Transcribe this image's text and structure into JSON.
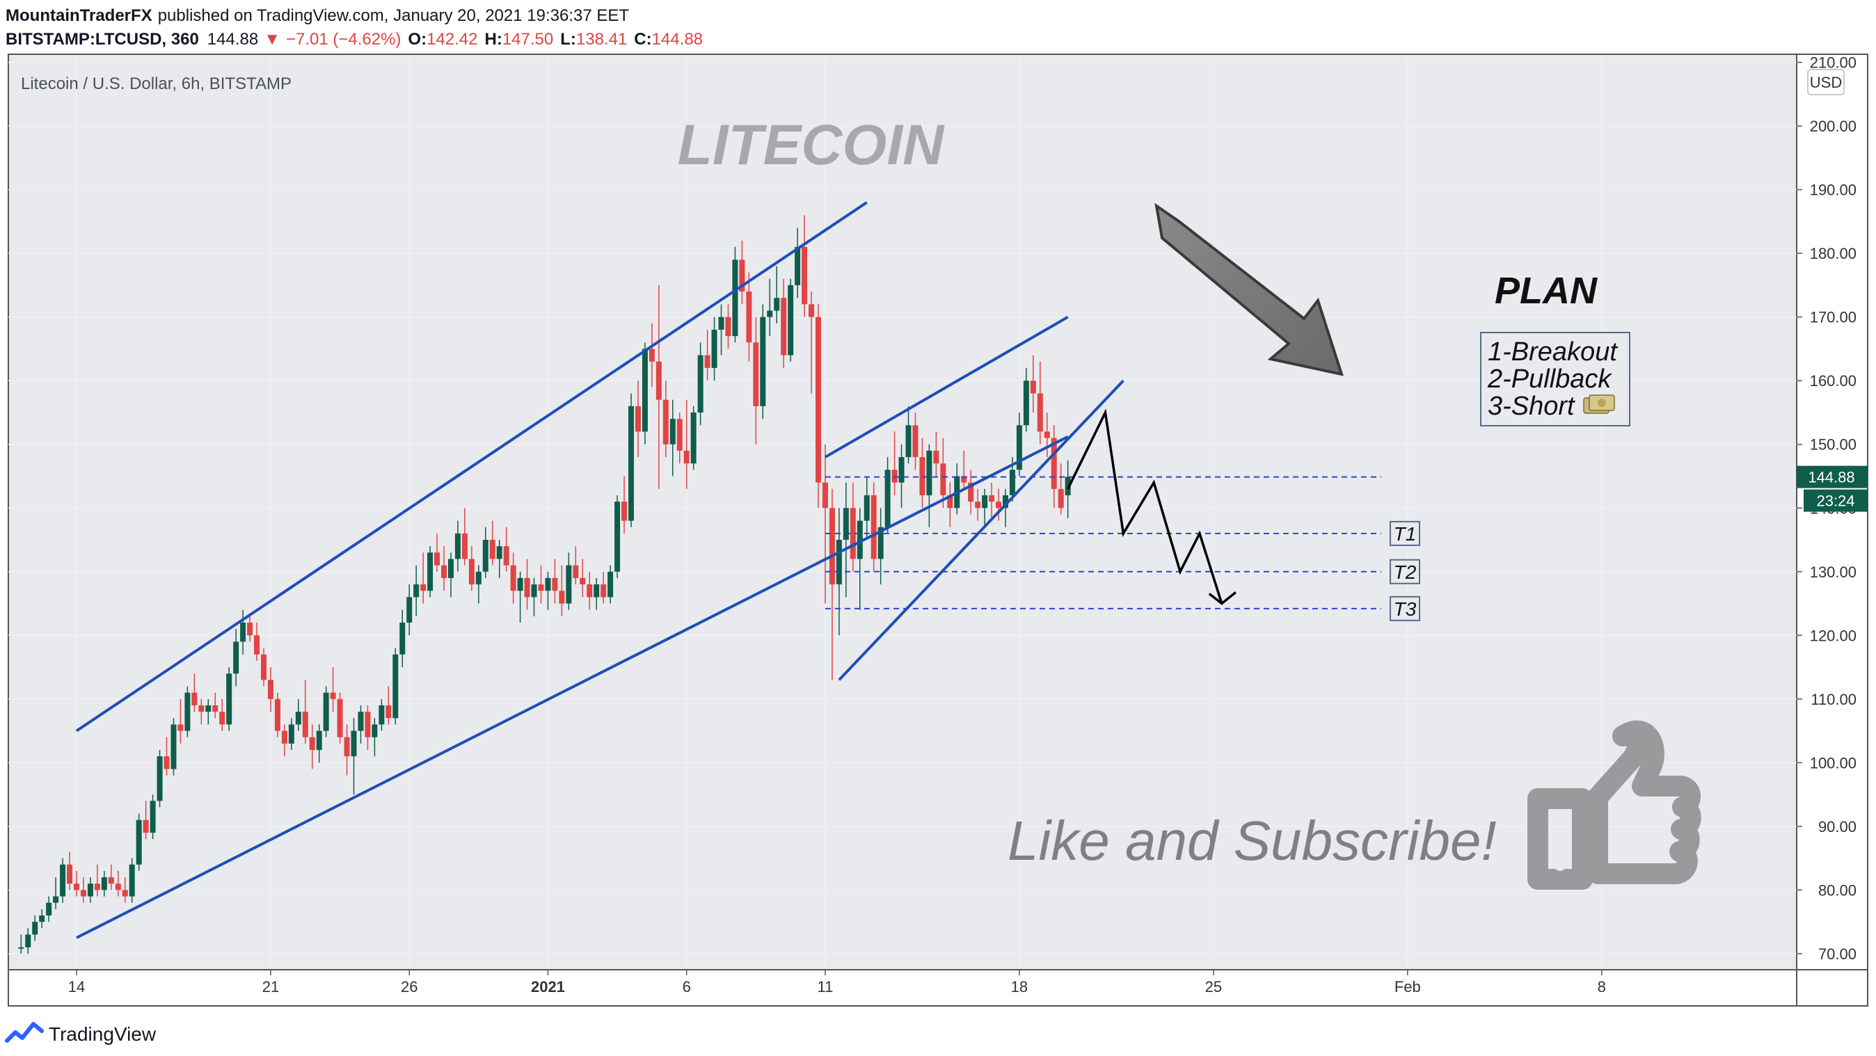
{
  "header": {
    "author": "MountainTraderFX",
    "published": "published on TradingView.com, January 20, 2021 19:36:37 EET",
    "symbol": "BITSTAMP:LTCUSD, 360",
    "price": "144.88",
    "change_arrow": "▼",
    "change": "−7.01 (−4.62%)",
    "o_label": "O:",
    "o": "142.42",
    "h_label": "H:",
    "h": "147.50",
    "l_label": "L:",
    "l": "138.41",
    "c_label": "C:",
    "c": "144.88"
  },
  "chart_title": "Litecoin / U.S. Dollar, 6h, BITSTAMP",
  "watermark": "LITECOIN",
  "currency": "USD",
  "price_tag": "144.88",
  "time_tag": "23:24",
  "plan": {
    "title": "PLAN",
    "items": [
      "1-Breakout",
      "2-Pullback",
      "3-Short"
    ],
    "short_icon": "money-icon"
  },
  "targets": [
    {
      "label": "T1",
      "price": 136
    },
    {
      "label": "T2",
      "price": 130
    },
    {
      "label": "T3",
      "price": 124.2
    }
  ],
  "cta": "Like and Subscribe!",
  "thumbs_icon": "thumbs-up-icon",
  "footer_brand": "TradingView",
  "colors": {
    "up": "#0e5e4b",
    "down": "#e04444",
    "channel": "#1e4fb5",
    "target_line": "#2f3fd6",
    "grid": "#f0f1f4",
    "plot_bg": "#e9eaee",
    "tag": "#0e5e4b"
  },
  "chart_data": {
    "type": "candlestick",
    "y_ticks": [
      "210.00",
      "200.00",
      "190.00",
      "180.00",
      "170.00",
      "160.00",
      "150.00",
      "140.00",
      "130.00",
      "120.00",
      "110.00",
      "100.00",
      "90.00",
      "80.00",
      "70.00"
    ],
    "ylim": [
      67,
      212
    ],
    "x_ticks": [
      {
        "label": "14",
        "day": 14
      },
      {
        "label": "21",
        "day": 21
      },
      {
        "label": "26",
        "day": 26
      },
      {
        "label": "2021",
        "day": 31
      },
      {
        "label": "6",
        "day": 36
      },
      {
        "label": "11",
        "day": 41
      },
      {
        "label": "18",
        "day": 48
      },
      {
        "label": "25",
        "day": 55
      },
      {
        "label": "Feb",
        "day": 62
      },
      {
        "label": "8",
        "day": 69
      }
    ],
    "x_axis": "days from Dec 1, 2020 (6h candles)",
    "series_ohlc": [
      [
        12,
        71,
        73,
        70,
        71
      ],
      [
        12.25,
        71,
        74,
        70,
        73
      ],
      [
        12.5,
        73,
        76,
        72,
        75
      ],
      [
        12.75,
        75,
        77,
        74,
        76
      ],
      [
        13,
        76,
        79,
        75,
        78
      ],
      [
        13.25,
        78,
        82,
        77,
        79
      ],
      [
        13.5,
        79,
        85,
        78,
        84
      ],
      [
        13.75,
        84,
        86,
        80,
        81
      ],
      [
        14,
        81,
        83,
        79,
        80
      ],
      [
        14.25,
        80,
        82,
        78,
        79
      ],
      [
        14.5,
        79,
        82,
        78,
        81
      ],
      [
        14.75,
        81,
        84,
        79,
        80
      ],
      [
        15,
        80,
        83,
        79,
        82
      ],
      [
        15.25,
        82,
        84,
        80,
        81
      ],
      [
        15.5,
        81,
        83,
        79,
        80
      ],
      [
        15.75,
        80,
        82,
        78,
        79
      ],
      [
        16,
        79,
        85,
        78,
        84
      ],
      [
        16.25,
        84,
        92,
        83,
        91
      ],
      [
        16.5,
        91,
        94,
        88,
        89
      ],
      [
        16.75,
        89,
        95,
        88,
        94
      ],
      [
        17,
        94,
        102,
        93,
        101
      ],
      [
        17.25,
        101,
        104,
        98,
        99
      ],
      [
        17.5,
        99,
        107,
        98,
        106
      ],
      [
        17.75,
        106,
        110,
        103,
        105
      ],
      [
        18,
        105,
        112,
        104,
        111
      ],
      [
        18.25,
        111,
        114,
        108,
        109
      ],
      [
        18.5,
        109,
        110,
        106,
        108
      ],
      [
        18.75,
        108,
        110,
        106,
        109
      ],
      [
        19,
        109,
        111,
        107,
        108
      ],
      [
        19.25,
        108,
        110,
        105,
        106
      ],
      [
        19.5,
        106,
        115,
        105,
        114
      ],
      [
        19.75,
        114,
        121,
        112,
        119
      ],
      [
        20,
        119,
        124,
        117,
        122
      ],
      [
        20.25,
        122,
        123,
        119,
        120
      ],
      [
        20.5,
        120,
        122,
        116,
        117
      ],
      [
        20.75,
        117,
        118,
        112,
        113
      ],
      [
        21,
        113,
        115,
        108,
        110
      ],
      [
        21.25,
        110,
        111,
        104,
        105
      ],
      [
        21.5,
        105,
        106,
        101,
        103
      ],
      [
        21.75,
        103,
        107,
        102,
        106
      ],
      [
        22,
        106,
        110,
        105,
        108
      ],
      [
        22.25,
        108,
        113,
        103,
        104
      ],
      [
        22.5,
        104,
        106,
        99,
        102
      ],
      [
        22.75,
        102,
        106,
        100,
        105
      ],
      [
        23,
        105,
        112,
        104,
        111
      ],
      [
        23.25,
        111,
        115,
        108,
        110
      ],
      [
        23.5,
        110,
        111,
        103,
        104
      ],
      [
        23.75,
        104,
        106,
        98,
        101
      ],
      [
        24,
        101,
        107,
        95,
        105
      ],
      [
        24.25,
        105,
        109,
        103,
        108
      ],
      [
        24.5,
        108,
        109,
        102,
        104
      ],
      [
        24.75,
        104,
        107,
        101,
        106
      ],
      [
        25,
        106,
        110,
        105,
        109
      ],
      [
        25.25,
        109,
        112,
        106,
        107
      ],
      [
        25.5,
        107,
        118,
        106,
        117
      ],
      [
        25.75,
        117,
        124,
        115,
        122
      ],
      [
        26,
        122,
        128,
        120,
        126
      ],
      [
        26.25,
        126,
        131,
        123,
        128
      ],
      [
        26.5,
        128,
        133,
        125,
        127
      ],
      [
        26.75,
        127,
        134,
        126,
        133
      ],
      [
        27,
        133,
        136,
        130,
        131
      ],
      [
        27.25,
        131,
        134,
        127,
        129
      ],
      [
        27.5,
        129,
        133,
        126,
        132
      ],
      [
        27.75,
        132,
        138,
        130,
        136
      ],
      [
        28,
        136,
        140,
        131,
        132
      ],
      [
        28.25,
        132,
        134,
        127,
        128
      ],
      [
        28.5,
        128,
        131,
        125,
        130
      ],
      [
        28.75,
        130,
        137,
        129,
        135
      ],
      [
        29,
        135,
        138,
        131,
        132
      ],
      [
        29.25,
        132,
        135,
        129,
        134
      ],
      [
        29.5,
        134,
        137,
        130,
        131
      ],
      [
        29.75,
        131,
        133,
        125,
        127
      ],
      [
        30,
        127,
        130,
        122,
        129
      ],
      [
        30.25,
        129,
        132,
        124,
        126
      ],
      [
        30.5,
        126,
        129,
        123,
        128
      ],
      [
        30.75,
        128,
        131,
        125,
        127
      ],
      [
        31,
        127,
        130,
        124,
        129
      ],
      [
        31.25,
        129,
        132,
        125,
        127
      ],
      [
        31.5,
        127,
        131,
        123,
        125
      ],
      [
        31.75,
        125,
        133,
        124,
        131
      ],
      [
        32,
        131,
        134,
        128,
        129
      ],
      [
        32.25,
        129,
        132,
        126,
        128
      ],
      [
        32.5,
        128,
        130,
        124,
        126
      ],
      [
        32.75,
        126,
        129,
        124,
        128
      ],
      [
        33,
        128,
        130,
        125,
        126
      ],
      [
        33.25,
        126,
        131,
        125,
        130
      ],
      [
        33.5,
        130,
        142,
        129,
        141
      ],
      [
        33.75,
        141,
        145,
        136,
        138
      ],
      [
        34,
        138,
        158,
        137,
        156
      ],
      [
        34.25,
        156,
        160,
        148,
        152
      ],
      [
        34.5,
        152,
        166,
        150,
        165
      ],
      [
        34.75,
        165,
        169,
        159,
        163
      ],
      [
        35,
        163,
        175,
        143,
        157
      ],
      [
        35.25,
        157,
        160,
        148,
        150
      ],
      [
        35.5,
        150,
        157,
        145,
        154
      ],
      [
        35.75,
        154,
        155,
        147,
        149
      ],
      [
        36,
        149,
        157,
        143,
        147
      ],
      [
        36.25,
        147,
        156,
        146,
        155
      ],
      [
        36.5,
        155,
        166,
        153,
        164
      ],
      [
        36.75,
        164,
        168,
        160,
        162
      ],
      [
        37,
        162,
        170,
        160,
        168
      ],
      [
        37.25,
        168,
        172,
        164,
        170
      ],
      [
        37.5,
        170,
        172,
        165,
        167
      ],
      [
        37.75,
        167,
        181,
        166,
        179
      ],
      [
        38,
        179,
        182,
        172,
        174
      ],
      [
        38.25,
        174,
        177,
        163,
        166
      ],
      [
        38.5,
        166,
        170,
        150,
        156
      ],
      [
        38.75,
        156,
        172,
        154,
        170
      ],
      [
        39,
        170,
        176,
        167,
        171
      ],
      [
        39.25,
        171,
        178,
        169,
        173
      ],
      [
        39.5,
        173,
        176,
        162,
        164
      ],
      [
        39.75,
        164,
        176,
        163,
        175
      ],
      [
        40,
        175,
        184,
        173,
        181
      ],
      [
        40.25,
        181,
        186,
        170,
        172
      ],
      [
        40.5,
        172,
        174,
        158,
        170
      ],
      [
        40.75,
        170,
        172,
        140,
        144
      ],
      [
        41,
        144,
        150,
        125,
        140
      ],
      [
        41.25,
        140,
        143,
        113,
        128
      ],
      [
        41.5,
        128,
        140,
        120,
        135
      ],
      [
        41.75,
        135,
        144,
        126,
        140
      ],
      [
        42,
        140,
        144,
        130,
        132
      ],
      [
        42.25,
        132,
        140,
        124,
        138
      ],
      [
        42.5,
        138,
        145,
        135,
        142
      ],
      [
        42.75,
        142,
        144,
        130,
        132
      ],
      [
        43,
        132,
        140,
        128,
        137
      ],
      [
        43.25,
        137,
        148,
        136,
        146
      ],
      [
        43.5,
        146,
        152,
        142,
        144
      ],
      [
        43.75,
        144,
        150,
        140,
        148
      ],
      [
        44,
        148,
        156,
        147,
        153
      ],
      [
        44.25,
        153,
        155,
        146,
        148
      ],
      [
        44.5,
        148,
        151,
        140,
        142
      ],
      [
        44.75,
        142,
        150,
        137,
        149
      ],
      [
        45,
        149,
        152,
        145,
        147
      ],
      [
        45.25,
        147,
        151,
        140,
        142
      ],
      [
        45.5,
        142,
        144,
        137,
        140
      ],
      [
        45.75,
        140,
        147,
        139,
        145
      ],
      [
        46,
        145,
        149,
        143,
        144
      ],
      [
        46.25,
        144,
        146,
        139,
        141
      ],
      [
        46.5,
        141,
        143,
        138,
        140
      ],
      [
        46.75,
        140,
        143,
        137,
        142
      ],
      [
        47,
        142,
        144,
        138,
        141
      ],
      [
        47.25,
        141,
        143,
        138,
        140
      ],
      [
        47.5,
        140,
        143,
        137,
        142
      ],
      [
        47.75,
        142,
        148,
        141,
        146
      ],
      [
        48,
        146,
        155,
        145,
        153
      ],
      [
        48.25,
        153,
        162,
        152,
        160
      ],
      [
        48.5,
        160,
        164,
        155,
        158
      ],
      [
        48.75,
        158,
        163,
        150,
        152
      ],
      [
        49,
        152,
        155,
        148,
        151
      ],
      [
        49.25,
        151,
        153,
        140,
        143
      ],
      [
        49.5,
        143,
        147,
        139,
        140
      ],
      [
        49.75,
        142,
        147.5,
        138.4,
        144.9
      ]
    ],
    "channel_lines": [
      {
        "name": "upper",
        "x": [
          14,
          42.5
        ],
        "y": [
          105,
          188
        ]
      },
      {
        "name": "lower",
        "x": [
          14,
          49.75
        ],
        "y": [
          72.5,
          151.2
        ]
      },
      {
        "name": "upper2",
        "x": [
          41,
          49.75
        ],
        "y": [
          148,
          170
        ]
      },
      {
        "name": "rising",
        "x": [
          41.5,
          51.75
        ],
        "y": [
          113,
          160
        ]
      }
    ],
    "projection": {
      "x": [
        49.75,
        51.1,
        51.75,
        52.85,
        53.8,
        54.5,
        55.3,
        55.1
      ],
      "y": [
        143,
        155,
        136,
        144,
        130,
        136,
        125,
        125.5
      ]
    },
    "current_price_line": 144.88
  }
}
